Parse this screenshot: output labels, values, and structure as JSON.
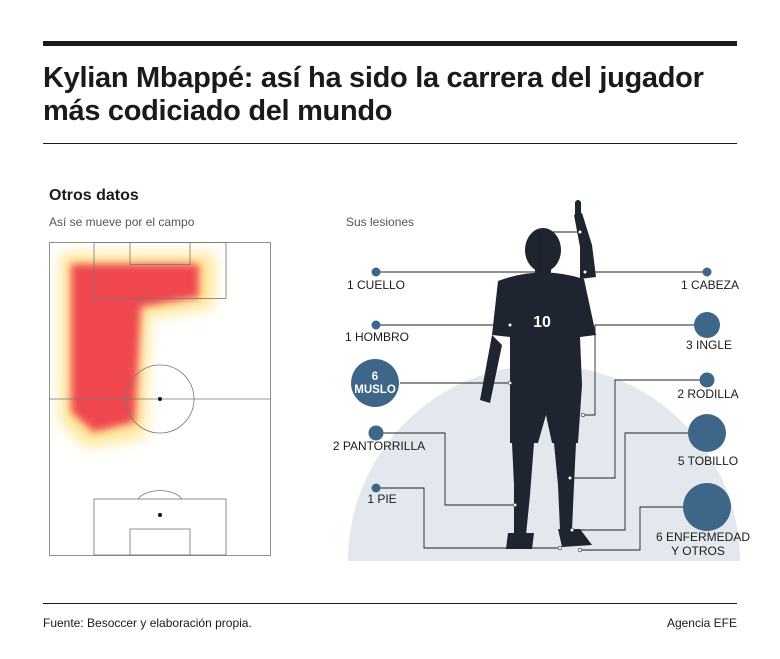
{
  "header": {
    "title": "Kylian Mbappé: así ha sido la carrera del jugador más codiciado del mundo"
  },
  "section": {
    "title": "Otros datos",
    "heatmap_subtitle": "Así se mueve por el campo",
    "injuries_subtitle": "Sus lesiones"
  },
  "injuries": [
    {
      "count": 1,
      "label": "1 CUELLO",
      "side": "left"
    },
    {
      "count": 1,
      "label": "1 HOMBRO",
      "side": "left"
    },
    {
      "count": 6,
      "label": "6 MUSLO",
      "label_lines": [
        "6",
        "MUSLO"
      ],
      "side": "left"
    },
    {
      "count": 2,
      "label": "2 PANTORRILLA",
      "side": "left"
    },
    {
      "count": 1,
      "label": "1 PIE",
      "side": "left"
    },
    {
      "count": 1,
      "label": "1 CABEZA",
      "side": "right"
    },
    {
      "count": 3,
      "label": "3 INGLE",
      "side": "right"
    },
    {
      "count": 2,
      "label": "2 RODILLA",
      "side": "right"
    },
    {
      "count": 5,
      "label": "5 TOBILLO",
      "side": "right"
    },
    {
      "count": 6,
      "label": "6 ENFERMEDAD Y OTROS",
      "label_lines": [
        "6 ENFERMEDAD",
        "Y OTROS"
      ],
      "side": "right"
    }
  ],
  "player": {
    "shirt_number": "10"
  },
  "footer": {
    "source": "Fuente: Besoccer y elaboración propia.",
    "agency": "Agencia EFE"
  },
  "colors": {
    "bubble": "#3e6688",
    "heat_hot": "#f0474f",
    "heat_warm": "#ffd23c",
    "arc": "#e3e8ee",
    "player_kit": "#1e2430"
  }
}
